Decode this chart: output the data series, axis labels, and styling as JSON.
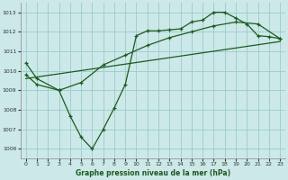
{
  "title": "Graphe pression niveau de la mer (hPa)",
  "bg_color": "#cce8e8",
  "grid_color": "#99cccc",
  "line_color": "#1a5c1a",
  "xlim": [
    -0.5,
    23.5
  ],
  "ylim": [
    1005.5,
    1013.5
  ],
  "yticks": [
    1006,
    1007,
    1008,
    1009,
    1010,
    1011,
    1012,
    1013
  ],
  "xticks": [
    0,
    1,
    2,
    3,
    4,
    5,
    6,
    7,
    8,
    9,
    10,
    11,
    12,
    13,
    14,
    15,
    16,
    17,
    18,
    19,
    20,
    21,
    22,
    23
  ],
  "series1_x": [
    0,
    1,
    3,
    4,
    5,
    6,
    7,
    8,
    9,
    10,
    11,
    12,
    13,
    14,
    15,
    16,
    17,
    18,
    19,
    20,
    21,
    22,
    23
  ],
  "series1_y": [
    1010.4,
    1009.6,
    1009.0,
    1007.7,
    1006.6,
    1006.0,
    1007.0,
    1008.1,
    1009.3,
    1011.8,
    1012.05,
    1012.05,
    1012.1,
    1012.15,
    1012.5,
    1012.6,
    1013.0,
    1013.0,
    1012.7,
    1012.4,
    1011.8,
    1011.75,
    1011.65
  ],
  "series2_x": [
    0,
    1,
    3,
    5,
    7,
    9,
    11,
    13,
    15,
    17,
    19,
    21,
    23
  ],
  "series2_y": [
    1009.8,
    1009.3,
    1009.0,
    1009.4,
    1010.3,
    1010.8,
    1011.3,
    1011.7,
    1012.0,
    1012.3,
    1012.5,
    1012.4,
    1011.65
  ],
  "series3_x": [
    0,
    23
  ],
  "series3_y": [
    1009.6,
    1011.5
  ]
}
